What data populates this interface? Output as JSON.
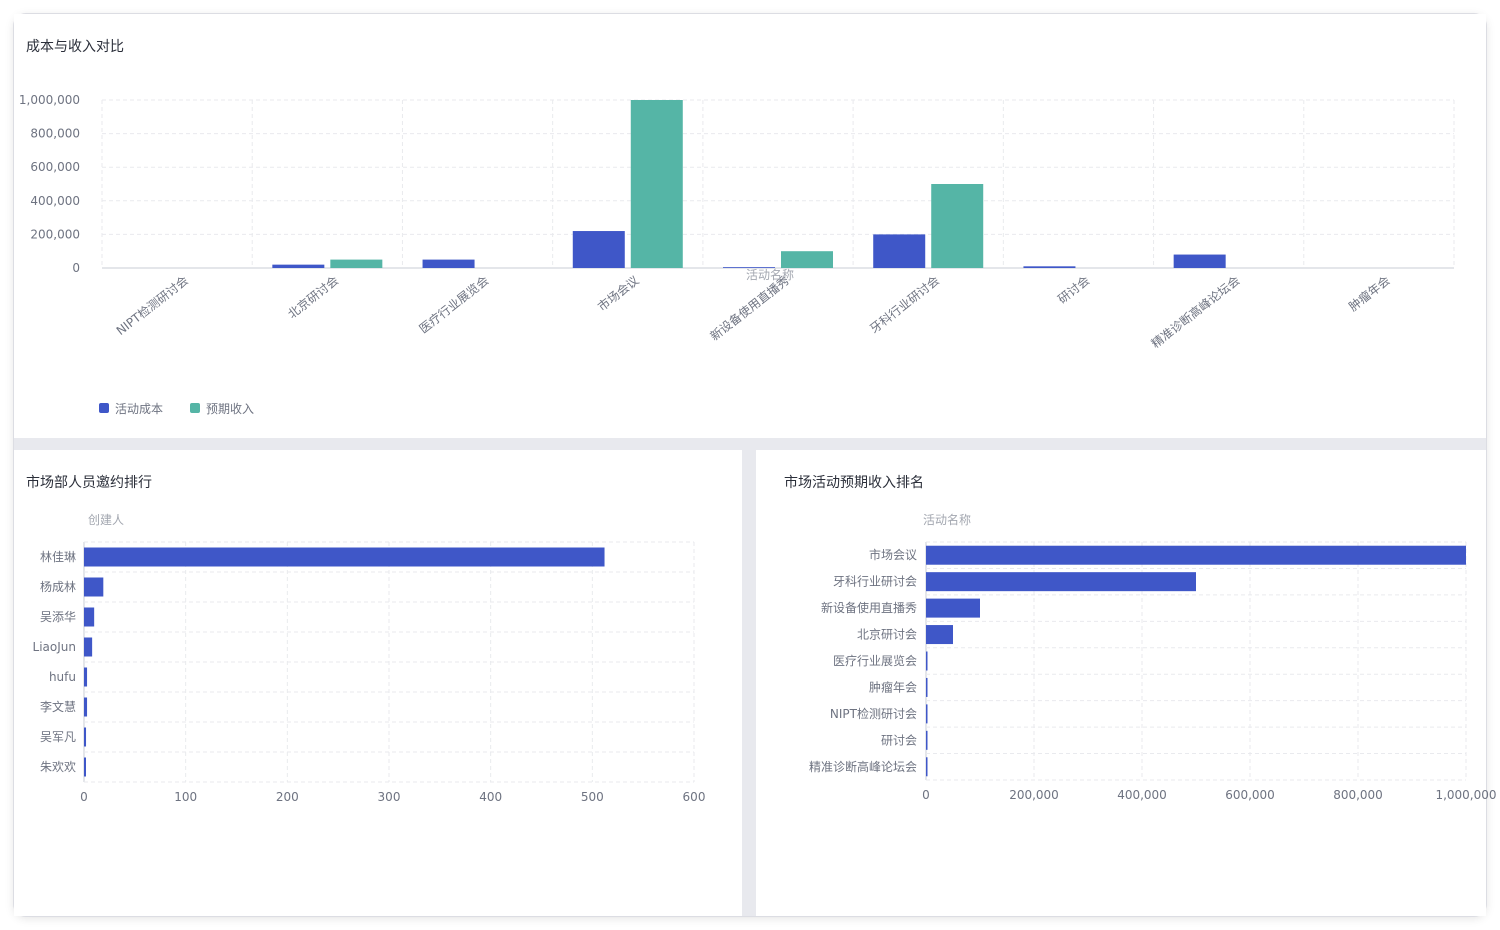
{
  "colors": {
    "cost": "#3f57c8",
    "revenue": "#55b5a6",
    "bar": "#3f57c8"
  },
  "panels": {
    "top": {
      "title": "成本与收入对比"
    },
    "bottom_left": {
      "title": "市场部人员邀约排行"
    },
    "bottom_right": {
      "title": "市场活动预期收入排名"
    }
  },
  "chart_data": [
    {
      "type": "bar",
      "xlabel": "活动名称",
      "categories": [
        "NIPT检测研讨会",
        "北京研讨会",
        "医疗行业展览会",
        "市场会议",
        "新设备使用直播秀",
        "牙科行业研讨会",
        "研讨会",
        "精准诊断高峰论坛会",
        "肿瘤年会"
      ],
      "series": [
        {
          "name": "活动成本",
          "values": [
            0,
            20000,
            50000,
            220000,
            5000,
            200000,
            10000,
            80000,
            0
          ]
        },
        {
          "name": "预期收入",
          "values": [
            0,
            50000,
            0,
            1000000,
            100000,
            500000,
            0,
            0,
            0
          ]
        }
      ],
      "yticks": [
        "0",
        "200,000",
        "400,000",
        "600,000",
        "800,000",
        "1,000,000"
      ],
      "ylim": [
        0,
        1000000
      ],
      "legend": "bottom-left",
      "grid": true
    },
    {
      "type": "bar",
      "orientation": "horizontal",
      "ylabel": "创建人",
      "categories": [
        "林佳琳",
        "杨成林",
        "吴添华",
        "LiaoJun",
        "hufu",
        "李文慧",
        "吴军凡",
        "朱欢欢"
      ],
      "values": [
        512,
        19,
        10,
        8,
        3,
        3,
        2,
        1
      ],
      "xticks": [
        "0",
        "100",
        "200",
        "300",
        "400",
        "500",
        "600"
      ],
      "xlim": [
        0,
        600
      ],
      "grid": true
    },
    {
      "type": "bar",
      "orientation": "horizontal",
      "ylabel": "活动名称",
      "categories": [
        "市场会议",
        "牙科行业研讨会",
        "新设备使用直播秀",
        "北京研讨会",
        "医疗行业展览会",
        "肿瘤年会",
        "NIPT检测研讨会",
        "研讨会",
        "精准诊断高峰论坛会"
      ],
      "values": [
        1000000,
        500000,
        100000,
        50000,
        0,
        0,
        0,
        0,
        0
      ],
      "xticks": [
        "0",
        "200,000",
        "400,000",
        "600,000",
        "800,000",
        "1,000,000"
      ],
      "xlim": [
        0,
        1000000
      ],
      "grid": true
    }
  ]
}
